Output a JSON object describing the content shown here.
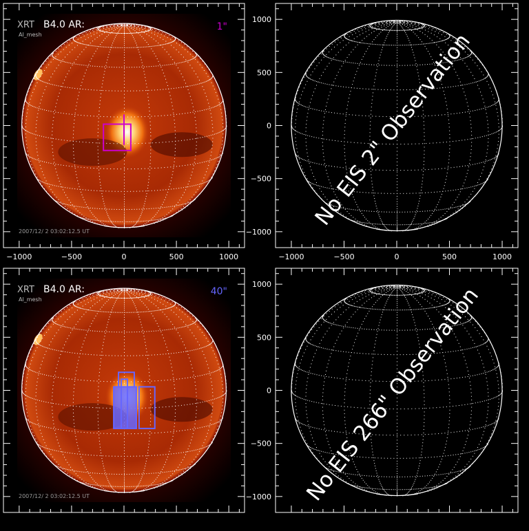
{
  "chart_data": [
    {
      "type": "image",
      "panel": "top-left",
      "instrument_label": "XRT",
      "title": "B4.0 AR:",
      "filter": "Al_mesh",
      "slit_label": "1\"",
      "slit_color": "#cc00cc",
      "timestamp": "2007/12/ 2 03:02:12.5 UT",
      "xlim": [
        -1150,
        1150
      ],
      "ylim": [
        -1150,
        1150
      ],
      "xticks": [
        -1000,
        -500,
        0,
        500,
        1000
      ],
      "yticks": [
        -1000,
        -500,
        0,
        500,
        1000
      ],
      "show_x_labels": true,
      "show_y_labels": false,
      "sun_radius": 975,
      "boxes": [
        {
          "x": [
            -196,
            65
          ],
          "y": [
            -235,
            13
          ],
          "color": "#cc00cc",
          "fill": false
        }
      ],
      "lines": [
        {
          "x": [
            0,
            0
          ],
          "y": [
            -183,
            105
          ],
          "color": "#cc00cc"
        }
      ]
    },
    {
      "type": "image",
      "panel": "top-right",
      "message": "No EIS 2\" Observation",
      "xlim": [
        -1150,
        1150
      ],
      "ylim": [
        -1150,
        1150
      ],
      "xticks": [
        -1000,
        -500,
        0,
        500,
        1000
      ],
      "yticks": [
        -1000,
        -500,
        0,
        500,
        1000
      ],
      "show_x_labels": true,
      "show_y_labels": true,
      "sun_radius": 1000
    },
    {
      "type": "image",
      "panel": "bottom-left",
      "instrument_label": "XRT",
      "title": "B4.0 AR:",
      "filter": "Al_mesh",
      "slit_label": "40\"",
      "slit_color": "#6666ff",
      "timestamp": "2007/12/ 2 03:02:12.5 UT",
      "xlim": [
        -1150,
        1150
      ],
      "ylim": [
        -1150,
        1150
      ],
      "xticks": [
        -1000,
        -500,
        0,
        500,
        1000
      ],
      "yticks": [
        -1000,
        -500,
        0,
        500,
        1000
      ],
      "show_x_labels": false,
      "show_y_labels": false,
      "sun_radius": 975,
      "boxes": [
        {
          "x": [
            -98,
            118
          ],
          "y": [
            -359,
            33
          ],
          "color": "#6666ff",
          "fill": true
        },
        {
          "x": [
            144,
            294
          ],
          "y": [
            -359,
            33
          ],
          "color": "#6666ff",
          "fill": false
        },
        {
          "x": [
            -52,
            98
          ],
          "y": [
            33,
            170
          ],
          "color": "#6666ff",
          "fill": false
        },
        {
          "x": [
            -26,
            33
          ],
          "y": [
            -359,
            105
          ],
          "color": "#6666ff",
          "fill": false
        }
      ],
      "lines": []
    },
    {
      "type": "image",
      "panel": "bottom-right",
      "message": "No EIS 266\" Observation",
      "xlim": [
        -1150,
        1150
      ],
      "ylim": [
        -1150,
        1150
      ],
      "xticks": [
        -1000,
        -500,
        0,
        500,
        1000
      ],
      "yticks": [
        -1000,
        -500,
        0,
        500,
        1000
      ],
      "show_x_labels": false,
      "show_y_labels": true,
      "sun_radius": 1000
    }
  ]
}
